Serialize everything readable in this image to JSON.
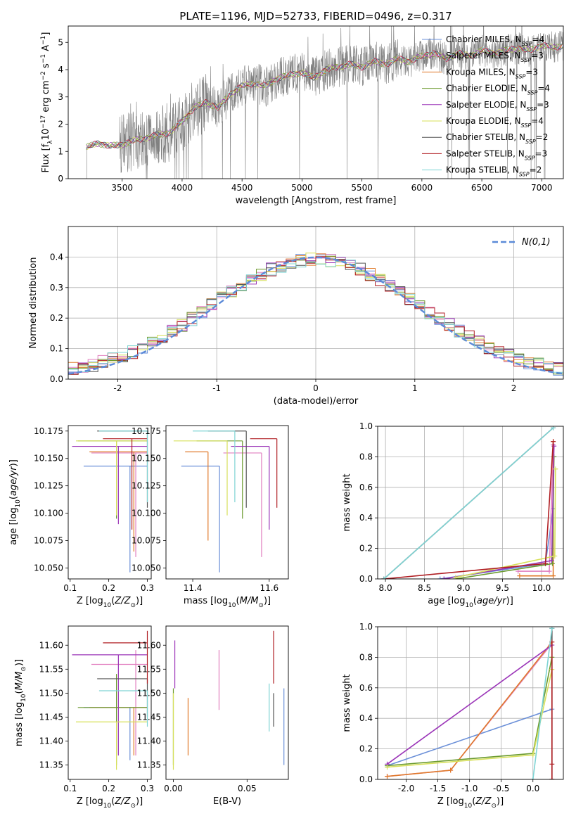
{
  "figure_title": "PLATE=1196, MJD=52733, FIBERID=0496, z=0.317",
  "colors": {
    "Chabrier MILES": "#6a8fd8",
    "Salpeter MILES": "#e17fbf",
    "Kroupa MILES": "#e07a2a",
    "Chabrier ELODIE": "#6b9a2e",
    "Salpeter ELODIE": "#9b35b8",
    "Kroupa ELODIE": "#d7e05a",
    "Chabrier STELIB": "#555555",
    "Salpeter STELIB": "#b01e23",
    "Kroupa STELIB": "#7fd4d4",
    "data": "#808080",
    "normal": "#5b8ad8"
  },
  "chart_data": [
    {
      "id": "spectrum",
      "type": "line",
      "title": "PLATE=1196, MJD=52733, FIBERID=0496, z=0.317",
      "xlabel": "wavelength [Angstrom, rest frame]",
      "ylabel": "Flux [f_λ 10^-17 erg cm^-2 s^-1 A^-1]",
      "xlim": [
        3050,
        7180
      ],
      "ylim": [
        0,
        5.6
      ],
      "xticks": [
        3500,
        4000,
        4500,
        5000,
        5500,
        6000,
        6500,
        7000
      ],
      "yticks": [
        0,
        1,
        2,
        3,
        4,
        5
      ],
      "legend_position": "top-right",
      "legend": [
        {
          "model": "Chabrier MILES",
          "n_ssp": "4"
        },
        {
          "model": "Salpeter MILES",
          "n_ssp": "3"
        },
        {
          "model": "Kroupa MILES",
          "n_ssp": "3"
        },
        {
          "model": "Chabrier ELODIE",
          "n_ssp": "4"
        },
        {
          "model": "Salpeter ELODIE",
          "n_ssp": "3"
        },
        {
          "model": "Kroupa ELODIE",
          "n_ssp": "4"
        },
        {
          "model": "Chabrier STELIB",
          "n_ssp": "2"
        },
        {
          "model": "Salpeter STELIB",
          "n_ssp": "3"
        },
        {
          "model": "Kroupa STELIB",
          "n_ssp": "2"
        }
      ],
      "continuum": {
        "x": [
          3200,
          3300,
          3400,
          3500,
          3600,
          3700,
          3800,
          3900,
          4000,
          4100,
          4200,
          4300,
          4400,
          4500,
          4600,
          4700,
          4800,
          4900,
          5000,
          5100,
          5200,
          5300,
          5400,
          5500,
          5600,
          5700,
          5800,
          5900,
          6000,
          6100,
          6200,
          6300,
          6400,
          6500,
          6600,
          6700,
          6800,
          6900,
          7000,
          7100,
          7180
        ],
        "y": [
          1.15,
          1.3,
          1.2,
          1.25,
          1.4,
          1.5,
          1.6,
          1.7,
          2.1,
          2.6,
          2.8,
          2.6,
          3.1,
          3.4,
          3.5,
          3.4,
          3.7,
          3.8,
          3.9,
          3.7,
          4.0,
          4.1,
          4.2,
          4.1,
          4.3,
          4.2,
          4.4,
          4.3,
          4.5,
          4.6,
          4.4,
          4.6,
          4.5,
          4.7,
          4.6,
          4.7,
          4.8,
          4.7,
          4.9,
          4.8,
          4.9
        ]
      }
    },
    {
      "id": "residuals",
      "type": "bar",
      "xlabel": "(data-model)/error",
      "ylabel": "Normed distribution",
      "xlim": [
        -2.5,
        2.5
      ],
      "ylim": [
        0,
        0.5
      ],
      "xticks": [
        -2,
        -1,
        0,
        1,
        2
      ],
      "yticks": [
        0.0,
        0.1,
        0.2,
        0.3,
        0.4
      ],
      "grid": true,
      "legend_position": "top-right",
      "legend": "N(0,1)",
      "bin_width": 0.1,
      "bin_start": -2.5
    },
    {
      "id": "age_vs_Z",
      "type": "scatter",
      "xlabel": "Z [log10(Z/Z⊙)]",
      "ylabel": "age [log10(age/yr)]",
      "xlim": [
        0.095,
        0.31
      ],
      "ylim": [
        10.04,
        10.18
      ],
      "xticks": [
        0.1,
        0.2,
        0.3
      ],
      "yticks": [
        10.05,
        10.075,
        10.1,
        10.125,
        10.15,
        10.175
      ],
      "points": [
        {
          "model": "Chabrier MILES",
          "x": 0.255,
          "xerr": [
            0.135,
            0.3
          ],
          "y": 10.143,
          "yerr": [
            10.046,
            10.143
          ]
        },
        {
          "model": "Salpeter MILES",
          "x": 0.27,
          "xerr": [
            0.155,
            0.3
          ],
          "y": 10.155,
          "yerr": [
            10.06,
            10.155
          ]
        },
        {
          "model": "Kroupa MILES",
          "x": 0.265,
          "xerr": [
            0.15,
            0.3
          ],
          "y": 10.156,
          "yerr": [
            10.065,
            10.156
          ]
        },
        {
          "model": "Chabrier ELODIE",
          "x": 0.22,
          "xerr": [
            0.12,
            0.3
          ],
          "y": 10.166,
          "yerr": [
            10.095,
            10.166
          ]
        },
        {
          "model": "Salpeter ELODIE",
          "x": 0.225,
          "xerr": [
            0.105,
            0.3
          ],
          "y": 10.161,
          "yerr": [
            10.09,
            10.161
          ]
        },
        {
          "model": "Kroupa ELODIE",
          "x": 0.22,
          "xerr": [
            0.115,
            0.3
          ],
          "y": 10.166,
          "yerr": [
            10.098,
            10.166
          ]
        },
        {
          "model": "Chabrier STELIB",
          "x": 0.3,
          "xerr": [
            0.17,
            0.3
          ],
          "y": 10.175,
          "yerr": [
            10.105,
            10.175
          ]
        },
        {
          "model": "Salpeter STELIB",
          "x": 0.26,
          "xerr": [
            0.185,
            0.3
          ],
          "y": 10.168,
          "yerr": [
            10.085,
            10.168
          ]
        },
        {
          "model": "Kroupa STELIB",
          "x": 0.3,
          "xerr": [
            0.175,
            0.3
          ],
          "y": 10.175,
          "yerr": [
            10.11,
            10.175
          ]
        }
      ]
    },
    {
      "id": "age_vs_mass",
      "type": "scatter",
      "xlabel": "mass [log10(M/M⊙)]",
      "ylabel": "",
      "xlim": [
        11.33,
        11.65
      ],
      "ylim": [
        10.04,
        10.18
      ],
      "xticks": [
        11.4,
        11.6
      ],
      "yticks": [
        10.05,
        10.075,
        10.1,
        10.125,
        10.15,
        10.175
      ],
      "points": [
        {
          "model": "Chabrier MILES",
          "x": 11.47,
          "xerr": [
            11.37,
            11.47
          ],
          "y": 10.143,
          "yerr": [
            10.046,
            10.143
          ]
        },
        {
          "model": "Salpeter MILES",
          "x": 11.58,
          "xerr": [
            11.48,
            11.58
          ],
          "y": 10.155,
          "yerr": [
            10.06,
            10.155
          ]
        },
        {
          "model": "Kroupa MILES",
          "x": 11.44,
          "xerr": [
            11.38,
            11.44
          ],
          "y": 10.156,
          "yerr": [
            10.075,
            10.156
          ]
        },
        {
          "model": "Chabrier ELODIE",
          "x": 11.53,
          "xerr": [
            11.41,
            11.53
          ],
          "y": 10.166,
          "yerr": [
            10.095,
            10.166
          ]
        },
        {
          "model": "Salpeter ELODIE",
          "x": 11.6,
          "xerr": [
            11.5,
            11.6
          ],
          "y": 10.161,
          "yerr": [
            10.085,
            10.161
          ]
        },
        {
          "model": "Kroupa ELODIE",
          "x": 11.49,
          "xerr": [
            11.35,
            11.49
          ],
          "y": 10.166,
          "yerr": [
            10.098,
            10.166
          ]
        },
        {
          "model": "Chabrier STELIB",
          "x": 11.54,
          "xerr": [
            11.44,
            11.54
          ],
          "y": 10.175,
          "yerr": [
            10.105,
            10.175
          ]
        },
        {
          "model": "Salpeter STELIB",
          "x": 11.62,
          "xerr": [
            11.55,
            11.62
          ],
          "y": 10.168,
          "yerr": [
            10.105,
            10.168
          ]
        },
        {
          "model": "Kroupa STELIB",
          "x": 11.51,
          "xerr": [
            11.4,
            11.51
          ],
          "y": 10.175,
          "yerr": [
            10.11,
            10.175
          ]
        }
      ]
    },
    {
      "id": "weight_vs_age",
      "type": "line",
      "xlabel": "age [log10(age/yr)]",
      "ylabel": "mass weight",
      "xlim": [
        7.9,
        10.28
      ],
      "ylim": [
        0,
        1.0
      ],
      "xticks": [
        8.0,
        8.5,
        9.0,
        9.5,
        10.0
      ],
      "yticks": [
        0.0,
        0.2,
        0.4,
        0.6,
        0.8,
        1.0
      ],
      "grid": true,
      "series": [
        {
          "model": "Chabrier MILES",
          "x": [
            8.7,
            10.05,
            10.15
          ],
          "y": [
            0.0,
            0.1,
            0.46
          ]
        },
        {
          "model": "Salpeter MILES",
          "x": [
            9.7,
            10.1,
            10.15
          ],
          "y": [
            0.05,
            0.05,
            0.88
          ]
        },
        {
          "model": "Kroupa MILES",
          "x": [
            9.72,
            10.15,
            10.15
          ],
          "y": [
            0.02,
            0.02,
            0.9
          ]
        },
        {
          "model": "Chabrier ELODIE",
          "x": [
            8.9,
            10.14,
            10.16
          ],
          "y": [
            0.0,
            0.1,
            0.8
          ]
        },
        {
          "model": "Salpeter ELODIE",
          "x": [
            8.75,
            10.13,
            10.16
          ],
          "y": [
            0.0,
            0.12,
            0.87
          ]
        },
        {
          "model": "Kroupa ELODIE",
          "x": [
            8.9,
            10.17,
            10.18
          ],
          "y": [
            0.01,
            0.15,
            0.72
          ]
        },
        {
          "model": "Chabrier STELIB",
          "x": [
            7.98,
            10.15
          ],
          "y": [
            0.0,
            0.99
          ]
        },
        {
          "model": "Salpeter STELIB",
          "x": [
            7.98,
            10.05,
            10.15
          ],
          "y": [
            0.0,
            0.1,
            0.9
          ]
        },
        {
          "model": "Kroupa STELIB",
          "x": [
            7.98,
            10.15
          ],
          "y": [
            0.0,
            0.99
          ]
        }
      ]
    },
    {
      "id": "mass_vs_Z",
      "type": "scatter",
      "xlabel": "Z [log10(Z/Z⊙)]",
      "ylabel": "mass [log10(M/M⊙)]",
      "xlim": [
        0.095,
        0.31
      ],
      "ylim": [
        11.32,
        11.64
      ],
      "xticks": [
        0.1,
        0.2,
        0.3
      ],
      "yticks": [
        11.35,
        11.4,
        11.45,
        11.5,
        11.55,
        11.6
      ],
      "points": [
        {
          "model": "Chabrier MILES",
          "x": 0.255,
          "xerr": [
            0.135,
            0.3
          ],
          "y": 11.47,
          "yerr": [
            11.36,
            11.47
          ]
        },
        {
          "model": "Salpeter MILES",
          "x": 0.27,
          "xerr": [
            0.155,
            0.3
          ],
          "y": 11.56,
          "yerr": [
            11.37,
            11.59
          ]
        },
        {
          "model": "Kroupa MILES",
          "x": 0.265,
          "xerr": [
            0.15,
            0.3
          ],
          "y": 11.47,
          "yerr": [
            11.37,
            11.47
          ]
        },
        {
          "model": "Chabrier ELODIE",
          "x": 0.22,
          "xerr": [
            0.12,
            0.3
          ],
          "y": 11.47,
          "yerr": [
            11.35,
            11.54
          ]
        },
        {
          "model": "Salpeter ELODIE",
          "x": 0.225,
          "xerr": [
            0.105,
            0.3
          ],
          "y": 11.58,
          "yerr": [
            11.37,
            11.58
          ]
        },
        {
          "model": "Kroupa ELODIE",
          "x": 0.22,
          "xerr": [
            0.115,
            0.3
          ],
          "y": 11.44,
          "yerr": [
            11.34,
            11.44
          ]
        },
        {
          "model": "Chabrier STELIB",
          "x": 0.3,
          "xerr": [
            0.17,
            0.3
          ],
          "y": 11.53,
          "yerr": [
            11.45,
            11.53
          ]
        },
        {
          "model": "Salpeter STELIB",
          "x": 0.3,
          "xerr": [
            0.185,
            0.3
          ],
          "y": 11.605,
          "yerr": [
            11.52,
            11.63
          ]
        },
        {
          "model": "Kroupa STELIB",
          "x": 0.3,
          "xerr": [
            0.175,
            0.3
          ],
          "y": 11.505,
          "yerr": [
            11.43,
            11.505
          ]
        }
      ]
    },
    {
      "id": "mass_vs_ebv",
      "type": "scatter",
      "xlabel": "E(B-V)",
      "ylabel": "",
      "xlim": [
        -0.005,
        0.078
      ],
      "ylim": [
        11.32,
        11.64
      ],
      "xticks": [
        0.0,
        0.05
      ],
      "yticks": [
        11.35,
        11.4,
        11.45,
        11.5,
        11.55,
        11.6
      ],
      "points": [
        {
          "model": "Chabrier MILES",
          "x": 0.075,
          "yerr": [
            11.35,
            11.51
          ]
        },
        {
          "model": "Salpeter MILES",
          "x": 0.031,
          "yerr": [
            11.465,
            11.59
          ]
        },
        {
          "model": "Kroupa MILES",
          "x": 0.01,
          "yerr": [
            11.37,
            11.49
          ]
        },
        {
          "model": "Chabrier ELODIE",
          "x": 0.0,
          "yerr": [
            11.35,
            11.51
          ]
        },
        {
          "model": "Salpeter ELODIE",
          "x": 0.001,
          "yerr": [
            11.51,
            11.61
          ]
        },
        {
          "model": "Kroupa ELODIE",
          "x": 0.0,
          "yerr": [
            11.34,
            11.5
          ]
        },
        {
          "model": "Chabrier STELIB",
          "x": 0.068,
          "yerr": [
            11.43,
            11.5
          ]
        },
        {
          "model": "Salpeter STELIB",
          "x": 0.068,
          "yerr": [
            11.52,
            11.63
          ]
        },
        {
          "model": "Kroupa STELIB",
          "x": 0.065,
          "yerr": [
            11.42,
            11.52
          ]
        }
      ]
    },
    {
      "id": "weight_vs_Z",
      "type": "line",
      "xlabel": "Z [log10(Z/Z⊙)]",
      "ylabel": "mass weight",
      "xlim": [
        -2.45,
        0.48
      ],
      "ylim": [
        0,
        1.0
      ],
      "xticks": [
        -2.0,
        -1.5,
        -1.0,
        -0.5,
        0.0
      ],
      "yticks": [
        0.0,
        0.2,
        0.4,
        0.6,
        0.8,
        1.0
      ],
      "grid": true,
      "series": [
        {
          "model": "Chabrier MILES",
          "x": [
            -2.3,
            0.3
          ],
          "y": [
            0.09,
            0.46
          ]
        },
        {
          "model": "Salpeter MILES",
          "x": [
            -2.3,
            -1.3,
            0.28
          ],
          "y": [
            0.02,
            0.06,
            0.88
          ]
        },
        {
          "model": "Kroupa MILES",
          "x": [
            -2.3,
            -1.3,
            0.3
          ],
          "y": [
            0.02,
            0.06,
            0.9
          ]
        },
        {
          "model": "Chabrier ELODIE",
          "x": [
            -2.3,
            0.0,
            0.3
          ],
          "y": [
            0.09,
            0.17,
            0.8
          ]
        },
        {
          "model": "Salpeter ELODIE",
          "x": [
            -2.3,
            0.3
          ],
          "y": [
            0.1,
            0.88
          ]
        },
        {
          "model": "Kroupa ELODIE",
          "x": [
            -2.3,
            0.0,
            0.3
          ],
          "y": [
            0.08,
            0.16,
            0.72
          ]
        },
        {
          "model": "Chabrier STELIB",
          "x": [
            0.3,
            0.3
          ],
          "y": [
            0.0,
            0.99
          ]
        },
        {
          "model": "Salpeter STELIB",
          "x": [
            0.3,
            0.3,
            0.3
          ],
          "y": [
            0.0,
            0.1,
            0.9
          ]
        },
        {
          "model": "Kroupa STELIB",
          "x": [
            0.0,
            0.3
          ],
          "y": [
            0.0,
            0.99
          ]
        }
      ]
    }
  ]
}
